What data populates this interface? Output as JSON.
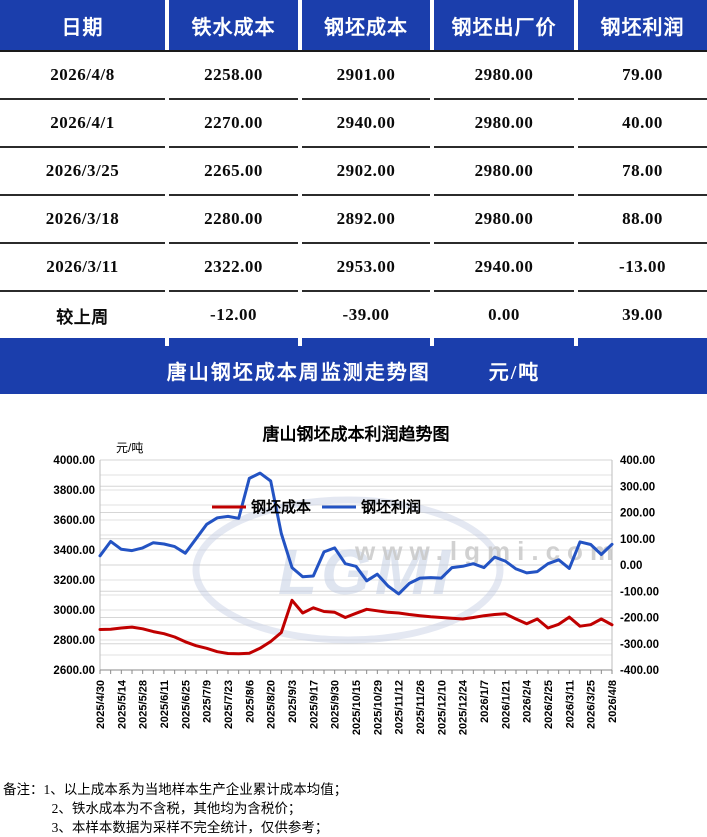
{
  "colors": {
    "header_blue": "#1b3eac",
    "table_red": "#ff0000",
    "table_green": "#009900",
    "line_red": "#c00000",
    "line_blue": "#2353c3",
    "grid": "#e2e2e2",
    "grid2": "#d6d6d6",
    "watermark": "#c9c9c9"
  },
  "table": {
    "headers": [
      "日期",
      "铁水成本",
      "钢坯成本",
      "钢坯出厂价",
      "钢坯利润"
    ],
    "rows": [
      {
        "cells": [
          {
            "t": "2026/4/8",
            "c": "black"
          },
          {
            "t": "2258.00",
            "c": "black"
          },
          {
            "t": "2901.00",
            "c": "black"
          },
          {
            "t": "2980.00",
            "c": "black"
          },
          {
            "t": "79.00",
            "c": "red"
          }
        ]
      },
      {
        "cells": [
          {
            "t": "2026/4/1",
            "c": "black"
          },
          {
            "t": "2270.00",
            "c": "black"
          },
          {
            "t": "2940.00",
            "c": "black"
          },
          {
            "t": "2980.00",
            "c": "black"
          },
          {
            "t": "40.00",
            "c": "red"
          }
        ]
      },
      {
        "cells": [
          {
            "t": "2026/3/25",
            "c": "black"
          },
          {
            "t": "2265.00",
            "c": "black"
          },
          {
            "t": "2902.00",
            "c": "black"
          },
          {
            "t": "2980.00",
            "c": "black"
          },
          {
            "t": "78.00",
            "c": "red"
          }
        ]
      },
      {
        "cells": [
          {
            "t": "2026/3/18",
            "c": "black"
          },
          {
            "t": "2280.00",
            "c": "black"
          },
          {
            "t": "2892.00",
            "c": "black"
          },
          {
            "t": "2980.00",
            "c": "black"
          },
          {
            "t": "88.00",
            "c": "red"
          }
        ]
      },
      {
        "cells": [
          {
            "t": "2026/3/11",
            "c": "black"
          },
          {
            "t": "2322.00",
            "c": "black"
          },
          {
            "t": "2953.00",
            "c": "black"
          },
          {
            "t": "2940.00",
            "c": "black"
          },
          {
            "t": "-13.00",
            "c": "black"
          }
        ]
      },
      {
        "cells": [
          {
            "t": "较上周",
            "c": "black"
          },
          {
            "t": "-12.00",
            "c": "green"
          },
          {
            "t": "-39.00",
            "c": "green"
          },
          {
            "t": "0.00",
            "c": "black"
          },
          {
            "t": "39.00",
            "c": "red"
          }
        ]
      }
    ]
  },
  "banner": {
    "title": "唐山钢坯成本周监测走势图",
    "unit": "元/吨"
  },
  "chart_data": {
    "type": "line",
    "title": "唐山钢坯成本利润趋势图",
    "unit_label": "元/吨",
    "legend_position": "inside-top",
    "grid": true,
    "watermark_text": "www.lgmi.com",
    "watermark_logo": "LGMI",
    "x": [
      "2025/4/30",
      "2025/5/7",
      "2025/5/14",
      "2025/5/21",
      "2025/5/28",
      "2025/6/4",
      "2025/6/11",
      "2025/6/18",
      "2025/6/25",
      "2025/7/2",
      "2025/7/9",
      "2025/7/16",
      "2025/7/23",
      "2025/7/30",
      "2025/8/6",
      "2025/8/13",
      "2025/8/20",
      "2025/8/27",
      "2025/9/3",
      "2025/9/10",
      "2025/9/17",
      "2025/9/24",
      "2025/9/30",
      "2025/10/8",
      "2025/10/15",
      "2025/10/22",
      "2025/10/29",
      "2025/11/5",
      "2025/11/12",
      "2025/11/19",
      "2025/11/26",
      "2025/12/3",
      "2025/12/10",
      "2025/12/17",
      "2025/12/24",
      "2025/12/31",
      "2026/1/7",
      "2026/1/14",
      "2026/1/21",
      "2026/1/28",
      "2026/2/4",
      "2026/2/11",
      "2026/2/25",
      "2026/3/4",
      "2026/3/11",
      "2026/3/18",
      "2026/3/25",
      "2026/4/1",
      "2026/4/8"
    ],
    "x_label_every": 2,
    "series": [
      {
        "name": "钢坯成本",
        "axis": "left",
        "color": "#c00000",
        "values": [
          2870,
          2872,
          2880,
          2886,
          2875,
          2856,
          2842,
          2820,
          2788,
          2762,
          2745,
          2722,
          2710,
          2708,
          2712,
          2745,
          2790,
          2850,
          3065,
          2980,
          3015,
          2990,
          2985,
          2950,
          2978,
          3005,
          2995,
          2985,
          2980,
          2970,
          2962,
          2955,
          2950,
          2945,
          2940,
          2950,
          2962,
          2970,
          2975,
          2940,
          2908,
          2940,
          2880,
          2905,
          2953,
          2892,
          2902,
          2940,
          2901
        ]
      },
      {
        "name": "钢坯利润",
        "axis": "right",
        "color": "#2353c3",
        "values": [
          35,
          90,
          60,
          55,
          65,
          85,
          80,
          70,
          45,
          100,
          155,
          180,
          185,
          178,
          330,
          350,
          320,
          120,
          -10,
          -45,
          -42,
          50,
          65,
          5,
          -5,
          -60,
          -35,
          -80,
          -110,
          -70,
          -50,
          -48,
          -50,
          -10,
          -5,
          5,
          -10,
          30,
          15,
          -15,
          -30,
          -25,
          5,
          20,
          -13,
          88,
          78,
          40,
          79
        ]
      }
    ],
    "left_axis": {
      "min": 2600,
      "max": 4000,
      "major_step": 200,
      "minor_step": 100,
      "ticks": [
        "4000.00",
        "3800.00",
        "3600.00",
        "3400.00",
        "3200.00",
        "3000.00",
        "2800.00",
        "2600.00"
      ]
    },
    "right_axis": {
      "min": -400,
      "max": 400,
      "major_step": 100,
      "ticks": [
        "400.00",
        "300.00",
        "200.00",
        "100.00",
        "0.00",
        "-100.00",
        "-200.00",
        "-300.00",
        "-400.00"
      ]
    }
  },
  "notes": {
    "lines": [
      "备注：1、以上成本系为当地样本生产企业累计成本均值；",
      "2、铁水成本为不含税，其他均为含税价；",
      "3、本样本数据为采样不完全统计，仅供参考；"
    ]
  }
}
